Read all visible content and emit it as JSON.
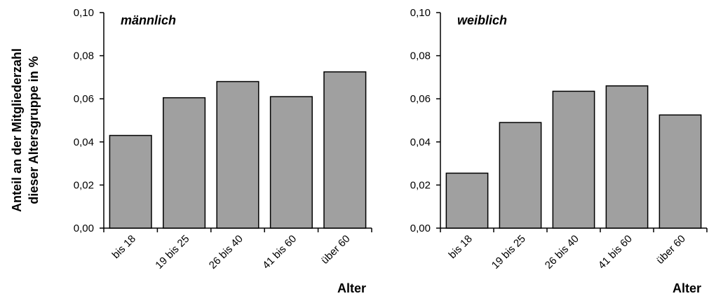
{
  "ylabel_line1": "Anteil an der Mitgliederzahl",
  "ylabel_line2": "dieser Altersgruppe in %",
  "colors": {
    "bar_fill": "#a0a0a0",
    "bar_stroke": "#000000",
    "axis": "#000000"
  },
  "chart_data": [
    {
      "type": "bar",
      "title": "männlich",
      "xlabel": "Alter",
      "ylabel": "Anteil an der Mitgliederzahl dieser Altersgruppe in %",
      "categories": [
        "bis 18",
        "19 bis 25",
        "26 bis 40",
        "41 bis 60",
        "über 60"
      ],
      "values": [
        0.043,
        0.0605,
        0.068,
        0.061,
        0.0725
      ],
      "ylim": [
        0,
        0.1
      ],
      "yticks": [
        "0,00",
        "0,02",
        "0,04",
        "0,06",
        "0,08",
        "0,10"
      ],
      "grid": false
    },
    {
      "type": "bar",
      "title": "weiblich",
      "xlabel": "Alter",
      "ylabel": "",
      "categories": [
        "bis 18",
        "19 bis 25",
        "26 bis 40",
        "41 bis 60",
        "über 60"
      ],
      "values": [
        0.0255,
        0.049,
        0.0635,
        0.066,
        0.0525
      ],
      "ylim": [
        0,
        0.1
      ],
      "yticks": [
        "0,00",
        "0,02",
        "0,04",
        "0,06",
        "0,08",
        "0,10"
      ],
      "grid": false
    }
  ]
}
